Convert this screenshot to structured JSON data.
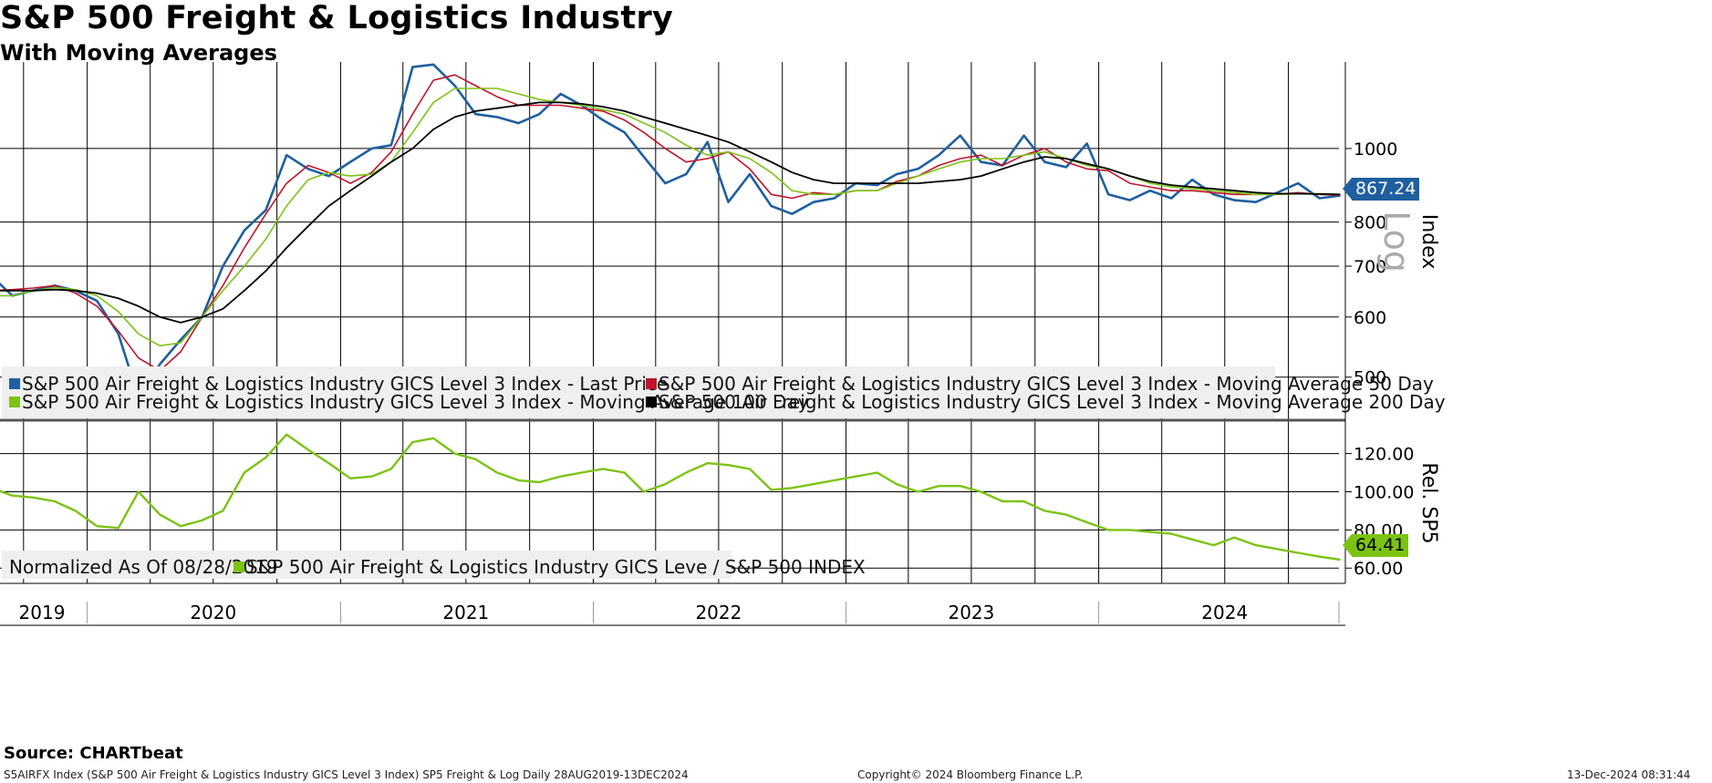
{
  "header": {
    "title": "S&P 500 Freight & Logistics Industry",
    "subtitle": "With Moving Averages"
  },
  "footer": {
    "source": "Source: CHARTbeat",
    "ticker_line": "S5AIRFX Index (S&P 500 Air Freight & Logistics Industry GICS Level 3 Index) SP5 Freight & Log  Daily 28AUG2019-13DEC2024",
    "copyright": "Copyright© 2024 Bloomberg Finance L.P.",
    "timestamp": "13-Dec-2024 08:31:44"
  },
  "colors": {
    "last_price": "#1f5fa0",
    "ma50": "#c0142b",
    "ma100": "#7cc313",
    "ma200": "#000000",
    "relative": "#7cc313",
    "grid": "#000000",
    "legend_bg": "#efefef"
  },
  "upper_legend": {
    "last_price": "S&P 500 Air Freight & Logistics Industry GICS Level 3 Index - Last Price",
    "ma50": "S&P 500 Air Freight & Logistics Industry GICS Level 3 Index - Moving Average 50 Day",
    "ma100": "S&P 500 Air Freight & Logistics Industry GICS Level 3 Index - Moving Average 100 Day",
    "ma200": "S&P 500 Air Freight & Logistics Industry GICS Level 3 Index - Moving Average 200 Day"
  },
  "lower_legend": {
    "normalized": "Normalized As Of 08/28/2019",
    "relative": "S&P 500 Air Freight & Logistics Industry GICS Leve / S&P 500 INDEX"
  },
  "value_labels": {
    "last_price": "867.24",
    "relative": "64.41"
  },
  "chart_data": [
    {
      "type": "line",
      "panel": "upper",
      "ylabel": "Index",
      "scale": "log",
      "scale_label": "Log",
      "yticks": [
        500,
        600,
        700,
        800,
        1000
      ],
      "ytick_labels": [
        "500",
        "600",
        "700",
        "800",
        "1000"
      ],
      "ylim": [
        440,
        1300
      ],
      "x_tick_labels": [
        "2019",
        "2020",
        "2021",
        "2022",
        "2023",
        "2024"
      ],
      "x": [
        "2019-08",
        "2019-09",
        "2019-10",
        "2019-11",
        "2019-12",
        "2020-01",
        "2020-02",
        "2020-03",
        "2020-04",
        "2020-05",
        "2020-06",
        "2020-07",
        "2020-08",
        "2020-09",
        "2020-10",
        "2020-11",
        "2020-12",
        "2021-01",
        "2021-02",
        "2021-03",
        "2021-04",
        "2021-05",
        "2021-06",
        "2021-07",
        "2021-08",
        "2021-09",
        "2021-10",
        "2021-11",
        "2021-12",
        "2022-01",
        "2022-02",
        "2022-03",
        "2022-04",
        "2022-05",
        "2022-06",
        "2022-07",
        "2022-08",
        "2022-09",
        "2022-10",
        "2022-11",
        "2022-12",
        "2023-01",
        "2023-02",
        "2023-03",
        "2023-04",
        "2023-05",
        "2023-06",
        "2023-07",
        "2023-08",
        "2023-09",
        "2023-10",
        "2023-11",
        "2023-12",
        "2024-01",
        "2024-02",
        "2024-03",
        "2024-04",
        "2024-05",
        "2024-06",
        "2024-07",
        "2024-08",
        "2024-09",
        "2024-10",
        "2024-11",
        "2024-12"
      ],
      "series": [
        {
          "name": "S&P 500 Air Freight & Logistics Industry GICS Level 3 Index - Last Price",
          "values": [
            680,
            640,
            650,
            660,
            650,
            630,
            570,
            470,
            520,
            560,
            600,
            700,
            780,
            830,
            980,
            940,
            920,
            960,
            1000,
            1010,
            1280,
            1290,
            1210,
            1110,
            1100,
            1080,
            1110,
            1180,
            1140,
            1090,
            1050,
            975,
            900,
            925,
            1020,
            850,
            925,
            840,
            820,
            850,
            860,
            900,
            895,
            925,
            940,
            980,
            1040,
            960,
            950,
            1040,
            960,
            945,
            1015,
            870,
            855,
            880,
            860,
            910,
            870,
            855,
            850,
            875,
            900,
            860,
            867
          ]
        },
        {
          "name": "S&P 500 Air Freight & Logistics Industry GICS Level 3 Index - Moving Average 50 Day",
          "values": [
            650,
            652,
            655,
            660,
            645,
            620,
            575,
            530,
            510,
            540,
            600,
            660,
            740,
            820,
            900,
            950,
            930,
            900,
            930,
            990,
            1110,
            1230,
            1250,
            1210,
            1170,
            1140,
            1140,
            1140,
            1130,
            1120,
            1090,
            1050,
            1000,
            960,
            970,
            990,
            940,
            870,
            860,
            875,
            870,
            880,
            880,
            905,
            920,
            950,
            970,
            980,
            950,
            980,
            1000,
            960,
            940,
            935,
            900,
            890,
            880,
            880,
            875,
            870,
            870,
            870,
            875,
            870,
            868
          ]
        },
        {
          "name": "S&P 500 Air Freight & Logistics Industry GICS Level 3 Index - Moving Average 100 Day",
          "values": [
            640,
            640,
            650,
            656,
            652,
            640,
            610,
            570,
            550,
            555,
            600,
            650,
            700,
            760,
            840,
            910,
            930,
            920,
            925,
            960,
            1050,
            1150,
            1200,
            1200,
            1200,
            1180,
            1160,
            1150,
            1140,
            1125,
            1110,
            1080,
            1050,
            1010,
            980,
            990,
            970,
            930,
            880,
            870,
            870,
            880,
            880,
            900,
            920,
            940,
            960,
            970,
            970,
            980,
            990,
            970,
            950,
            940,
            920,
            900,
            890,
            885,
            880,
            875,
            870,
            870,
            872,
            872,
            870
          ]
        },
        {
          "name": "S&P 500 Air Freight & Logistics Industry GICS Level 3 Index - Moving Average 200 Day",
          "values": [
            650,
            650,
            650,
            652,
            650,
            645,
            635,
            620,
            600,
            590,
            600,
            615,
            650,
            690,
            740,
            790,
            840,
            880,
            920,
            960,
            1000,
            1060,
            1100,
            1120,
            1130,
            1140,
            1150,
            1150,
            1145,
            1135,
            1120,
            1100,
            1080,
            1060,
            1040,
            1020,
            990,
            960,
            930,
            910,
            900,
            900,
            900,
            900,
            900,
            905,
            910,
            920,
            940,
            960,
            975,
            970,
            955,
            940,
            920,
            905,
            895,
            890,
            885,
            880,
            875,
            872,
            872,
            871,
            870
          ]
        }
      ]
    },
    {
      "type": "line",
      "panel": "lower",
      "ylabel": "Rel. SP5",
      "yticks": [
        60,
        80,
        100,
        120
      ],
      "ytick_labels": [
        "60.00",
        "80.00",
        "100.00",
        "120.00"
      ],
      "ylim": [
        52,
        137
      ],
      "x": [
        "2019-08",
        "2019-09",
        "2019-10",
        "2019-11",
        "2019-12",
        "2020-01",
        "2020-02",
        "2020-03",
        "2020-04",
        "2020-05",
        "2020-06",
        "2020-07",
        "2020-08",
        "2020-09",
        "2020-10",
        "2020-11",
        "2020-12",
        "2021-01",
        "2021-02",
        "2021-03",
        "2021-04",
        "2021-05",
        "2021-06",
        "2021-07",
        "2021-08",
        "2021-09",
        "2021-10",
        "2021-11",
        "2021-12",
        "2022-01",
        "2022-02",
        "2022-03",
        "2022-04",
        "2022-05",
        "2022-06",
        "2022-07",
        "2022-08",
        "2022-09",
        "2022-10",
        "2022-11",
        "2022-12",
        "2023-01",
        "2023-02",
        "2023-03",
        "2023-04",
        "2023-05",
        "2023-06",
        "2023-07",
        "2023-08",
        "2023-09",
        "2023-10",
        "2023-11",
        "2023-12",
        "2024-01",
        "2024-02",
        "2024-03",
        "2024-04",
        "2024-05",
        "2024-06",
        "2024-07",
        "2024-08",
        "2024-09",
        "2024-10",
        "2024-11",
        "2024-12"
      ],
      "series": [
        {
          "name": "S&P 500 Air Freight & Logistics Industry GICS Leve / S&P 500 INDEX",
          "values": [
            102,
            98,
            97,
            95,
            90,
            82,
            81,
            100,
            88,
            82,
            85,
            90,
            110,
            118,
            130,
            122,
            115,
            107,
            108,
            112,
            126,
            128,
            120,
            117,
            110,
            106,
            105,
            108,
            110,
            112,
            110,
            100,
            104,
            110,
            115,
            114,
            112,
            101,
            102,
            104,
            106,
            108,
            110,
            104,
            100,
            103,
            103,
            100,
            95,
            95,
            90,
            88,
            84,
            80,
            80,
            79,
            78,
            75,
            72,
            76,
            72,
            70,
            68,
            66,
            64.41
          ]
        }
      ]
    }
  ]
}
